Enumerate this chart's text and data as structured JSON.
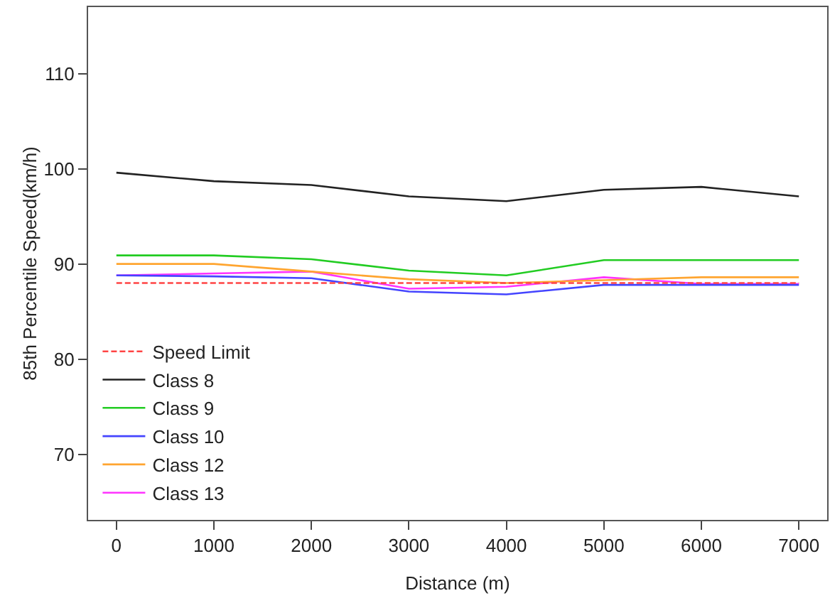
{
  "chart_data": {
    "type": "line",
    "xlabel": "Distance (m)",
    "ylabel": "85th Percentile Speed(km/h)",
    "x": [
      0,
      1000,
      2000,
      3000,
      4000,
      5000,
      6000,
      7000
    ],
    "xlim": [
      -290,
      7290
    ],
    "xticks": [
      0,
      1000,
      2000,
      3000,
      4000,
      5000,
      6000,
      7000
    ],
    "ylim": [
      63.1,
      117
    ],
    "yticks": [
      70,
      80,
      90,
      100,
      110
    ],
    "grid": false,
    "legend": "bottom left",
    "marker": "none",
    "series": [
      {
        "name": "Speed Limit",
        "color": "#ff4444",
        "line_style": "dashed",
        "values": [
          88.0,
          88.0,
          88.0,
          88.0,
          88.0,
          88.0,
          88.0,
          88.0
        ]
      },
      {
        "name": "Class 8",
        "color": "#222222",
        "values": [
          99.6,
          98.7,
          98.3,
          97.1,
          96.6,
          97.8,
          98.1,
          97.1
        ]
      },
      {
        "name": "Class 9",
        "color": "#22cc22",
        "values": [
          90.9,
          90.9,
          90.5,
          89.3,
          88.8,
          90.4,
          90.4,
          90.4
        ]
      },
      {
        "name": "Class 10",
        "color": "#4444ff",
        "values": [
          88.8,
          88.7,
          88.5,
          87.1,
          86.8,
          87.8,
          87.8,
          87.8
        ]
      },
      {
        "name": "Class 12",
        "color": "#ffa530",
        "values": [
          90.0,
          90.0,
          89.2,
          88.4,
          88.0,
          88.3,
          88.6,
          88.6
        ]
      },
      {
        "name": "Class 13",
        "color": "#ff33ff",
        "values": [
          88.8,
          89.0,
          89.2,
          87.4,
          87.6,
          88.6,
          87.9,
          87.9
        ]
      }
    ]
  }
}
